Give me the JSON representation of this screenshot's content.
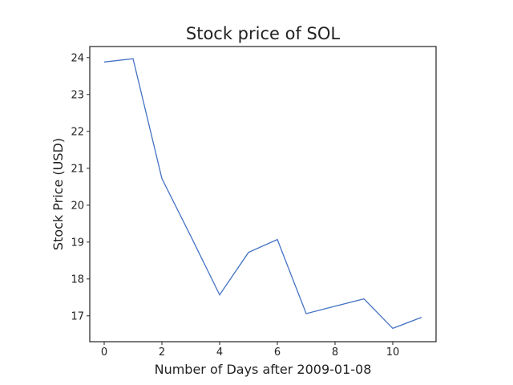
{
  "chart_data": {
    "type": "line",
    "title": "Stock price of SOL",
    "xlabel": "Number of Days after 2009-01-08",
    "ylabel": "Stock Price (USD)",
    "xlim": [
      -0.5,
      11.5
    ],
    "ylim": [
      16.3,
      24.3
    ],
    "xticks": [
      0,
      2,
      4,
      6,
      8,
      10
    ],
    "yticks": [
      17,
      18,
      19,
      20,
      21,
      22,
      23,
      24
    ],
    "grid": false,
    "series": [
      {
        "x": [
          0,
          1,
          2,
          3,
          4,
          5,
          6,
          7,
          8,
          9,
          10,
          11
        ],
        "values": [
          23.88,
          23.97,
          20.72,
          19.16,
          17.57,
          18.72,
          19.07,
          17.06,
          17.26,
          17.46,
          16.66,
          16.96
        ],
        "color": "#4472c4"
      }
    ]
  }
}
